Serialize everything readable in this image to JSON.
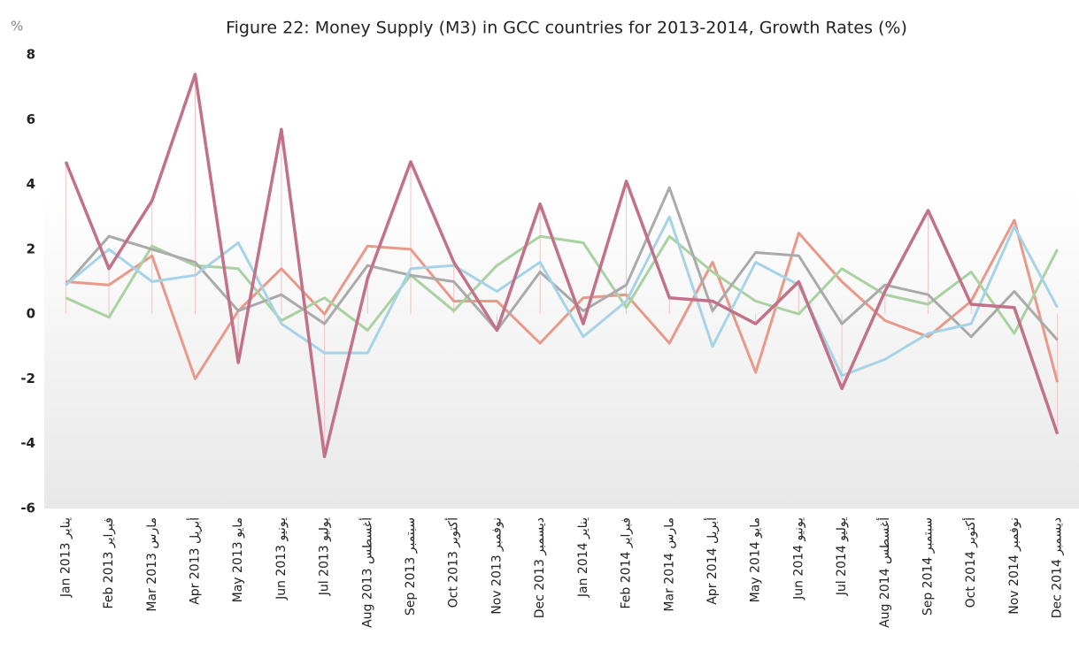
{
  "chart_data": {
    "type": "line",
    "title": "Figure 22: Money Supply (M3) in GCC countries for 2013-2014, Growth Rates (%)",
    "y_label": "%",
    "categories": [
      "Jan 2013 يناير",
      "Feb 2013 فبراير",
      "Mar 2013 مارس",
      "Apr 2013 أبريل",
      "May 2013 مايو",
      "Jun 2013 يونيو",
      "Jul 2013 يوليو",
      "Aug 2013 أغسطس",
      "Sep 2013 سبتمبر",
      "Oct 2013 أكتوبر",
      "Nov 2013 نوفمبر",
      "Dec 2013 ديسمبر",
      "Jan 2014 يناير",
      "Feb 2014 فبراير",
      "Mar 2014 مارس",
      "Apr 2014 أبريل",
      "May 2014 مايو",
      "Jun 2014 يونيو",
      "Jul 2014 يوليو",
      "Aug 2014 أغسطس",
      "Sep 2014 سبتمبر",
      "Oct 2014 أكتوبر",
      "Nov 2014 نوفمبر",
      "Dec 2014 ديسمبر"
    ],
    "series": [
      {
        "color": "#e8998a",
        "values": [
          1.0,
          0.9,
          1.8,
          -2.0,
          0.1,
          1.4,
          0.0,
          2.1,
          2.0,
          0.4,
          0.4,
          -0.9,
          0.5,
          0.6,
          -0.9,
          1.6,
          -1.8,
          2.5,
          1.0,
          -0.2,
          -0.7,
          0.4,
          2.9,
          -2.1
        ]
      },
      {
        "color": "#a9d1a1",
        "values": [
          0.5,
          -0.1,
          2.1,
          1.5,
          1.4,
          -0.2,
          0.5,
          -0.5,
          1.2,
          0.1,
          1.5,
          2.4,
          2.2,
          0.2,
          2.4,
          1.3,
          0.4,
          0.0,
          1.4,
          0.6,
          0.3,
          1.3,
          -0.6,
          2.0
        ]
      },
      {
        "color": "#aaaaaa",
        "values": [
          0.9,
          2.4,
          2.0,
          1.6,
          0.1,
          0.6,
          -0.3,
          1.5,
          1.2,
          1.0,
          -0.5,
          1.3,
          0.1,
          0.9,
          3.9,
          0.1,
          1.9,
          1.8,
          -0.3,
          0.9,
          0.6,
          -0.7,
          0.7,
          -0.8
        ]
      },
      {
        "color": "#a6d3e8",
        "values": [
          0.9,
          2.0,
          1.0,
          1.2,
          2.2,
          -0.3,
          -1.2,
          -1.2,
          1.4,
          1.5,
          0.7,
          1.6,
          -0.7,
          0.4,
          3.0,
          -1.0,
          1.6,
          0.9,
          -1.9,
          -1.4,
          -0.6,
          -0.3,
          2.7,
          0.2
        ]
      },
      {
        "color": "#c27288",
        "values": [
          4.7,
          1.4,
          3.5,
          7.4,
          -1.5,
          5.7,
          -4.4,
          1.1,
          4.7,
          1.6,
          -0.5,
          3.4,
          -0.3,
          4.1,
          0.5,
          0.4,
          -0.3,
          1.0,
          -2.3,
          0.7,
          3.2,
          0.3,
          0.2,
          -3.7
        ]
      }
    ],
    "ylim": [
      -6,
      8
    ],
    "yticks": [
      -6,
      -4,
      -2,
      0,
      2,
      4,
      6,
      8
    ],
    "grid": false
  }
}
